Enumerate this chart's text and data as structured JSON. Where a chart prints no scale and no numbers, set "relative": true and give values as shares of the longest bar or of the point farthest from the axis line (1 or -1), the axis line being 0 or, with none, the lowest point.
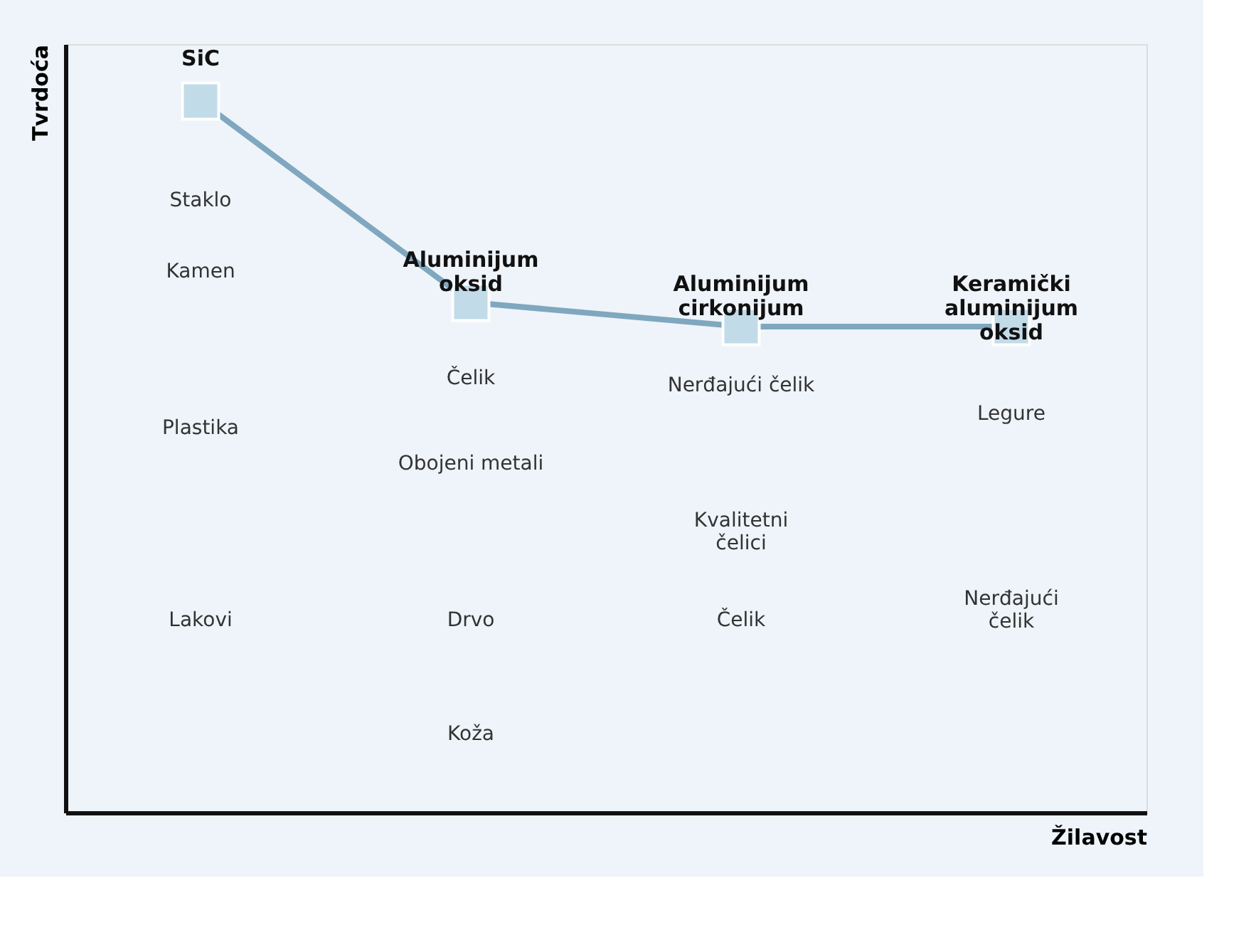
{
  "chart_data": {
    "type": "line",
    "relative": true,
    "ylabel": "Tvrdoća",
    "xlabel": "Žilavost",
    "categories": [
      "SiC",
      "Aluminijum oksid",
      "Aluminijum cirkonijum",
      "Keramički aluminijum oksid"
    ],
    "series": [
      {
        "color": "#7fa7bf",
        "values": [
          1,
          0.717,
          0.683,
          0.683
        ]
      }
    ],
    "marker": "square",
    "tick_labels": false,
    "grid": false,
    "annotations": [
      "Staklo",
      "Kamen",
      "Plastika",
      "Lakovi",
      "Čelik",
      "Obojeni metali",
      "Drvo",
      "Koža",
      "Nerđajući čelik",
      "Kvalitetni\nčelici",
      "Čelik",
      "Legure",
      "Nerđajući\nčelik"
    ]
  }
}
